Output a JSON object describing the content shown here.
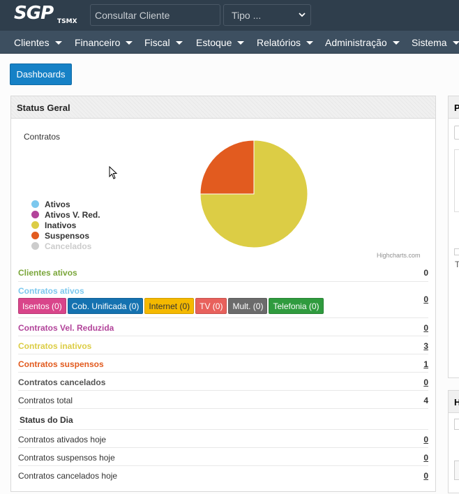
{
  "header": {
    "logo_text": "SGP",
    "logo_sub": "TSMX",
    "search_placeholder": "Consultar Cliente",
    "type_select": "Tipo ..."
  },
  "nav": {
    "items": [
      {
        "label": "Clientes"
      },
      {
        "label": "Financeiro"
      },
      {
        "label": "Fiscal"
      },
      {
        "label": "Estoque"
      },
      {
        "label": "Relatórios"
      },
      {
        "label": "Administração"
      },
      {
        "label": "Sistema"
      }
    ]
  },
  "dashboards_button": "Dashboards",
  "panel": {
    "title": "Status Geral",
    "chart_title": "Contratos",
    "credit": "Highcharts.com"
  },
  "chart_data": {
    "type": "pie",
    "title": "Contratos",
    "categories": [
      "Ativos",
      "Ativos V. Red.",
      "Inativos",
      "Suspensos",
      "Cancelados"
    ],
    "values": [
      0,
      0,
      3,
      1,
      0
    ],
    "colors": [
      "#7cc8ee",
      "#b2449a",
      "#dccd45",
      "#e25b1f",
      "#cccccc"
    ],
    "disabled": [
      false,
      false,
      false,
      false,
      true
    ],
    "legend_position": "left"
  },
  "rows": {
    "clientes_ativos": {
      "label": "Clientes ativos",
      "value": "0",
      "color": "#7aa63a"
    },
    "contratos_ativos": {
      "label": "Contratos ativos",
      "value": "0",
      "color": "#7cc8ee"
    },
    "badges": [
      {
        "label": "Isentos (0)",
        "color": "#d9458a"
      },
      {
        "label": "Cob. Unificada (0)",
        "color": "#1572b0"
      },
      {
        "label": "Internet (0)",
        "color": "#f5b900",
        "text_color": "#333"
      },
      {
        "label": "TV (0)",
        "color": "#e8615c"
      },
      {
        "label": "Mult. (0)",
        "color": "#6b6b6b"
      },
      {
        "label": "Telefonia (0)",
        "color": "#2f9b3e"
      }
    ],
    "vel_reduzida": {
      "label": "Contratos Vel. Reduzida",
      "value": "0",
      "color": "#b2449a"
    },
    "inativos": {
      "label": "Contratos inativos",
      "value": "3",
      "color": "#dccd45"
    },
    "suspensos": {
      "label": "Contratos suspensos",
      "value": "1",
      "color": "#e25b1f"
    },
    "cancelados": {
      "label": "Contratos cancelados",
      "value": "0",
      "color": "#555555"
    },
    "total": {
      "label": "Contratos total",
      "value": "4"
    },
    "status_dia_title": "Status do Dia",
    "ativados_hoje": {
      "label": "Contratos ativados hoje",
      "value": "0"
    },
    "suspensos_hoje": {
      "label": "Contratos suspensos hoje",
      "value": "0"
    },
    "cancelados_hoje": {
      "label": "Contratos cancelados hoje",
      "value": "0"
    }
  },
  "right_panels": [
    {
      "head": "P",
      "lines": [
        "T"
      ]
    },
    {
      "head": "H"
    }
  ]
}
